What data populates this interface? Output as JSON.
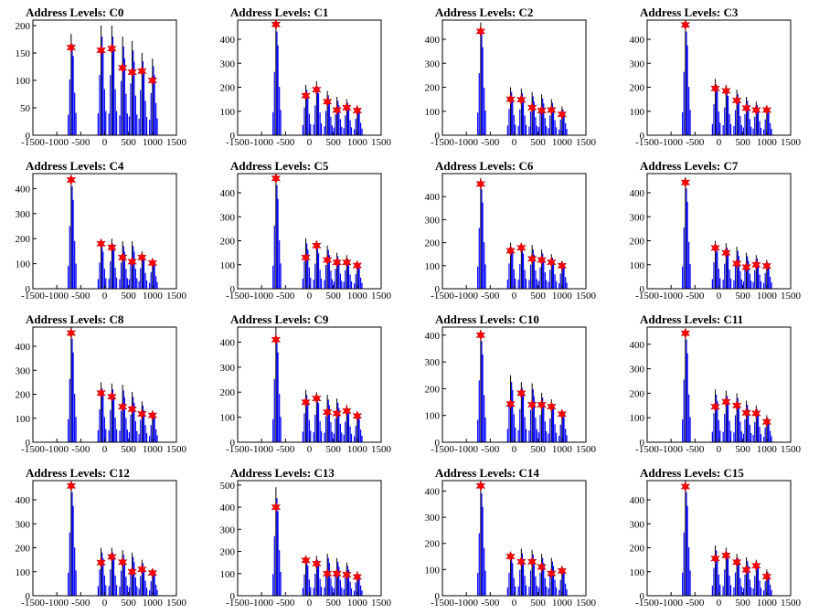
{
  "colors": {
    "histogram": "#0000ff",
    "peak_marker": "#ff0000",
    "axis": "#000000",
    "background": "#ffffff"
  },
  "axis": {
    "xlim": [
      -1500,
      1500
    ],
    "xticks": [
      -1500,
      -1000,
      -500,
      0,
      500,
      1000,
      1500
    ]
  },
  "chart_data": [
    {
      "type": "line",
      "title": "Address Levels: C0",
      "ylim": [
        0,
        210
      ],
      "yticks": [
        0,
        50,
        100,
        150,
        200
      ],
      "peaks": [
        {
          "x": -700,
          "y": 160,
          "top": 185
        },
        {
          "x": -75,
          "y": 155,
          "top": 200
        },
        {
          "x": 150,
          "y": 158,
          "top": 200
        },
        {
          "x": 375,
          "y": 123,
          "top": 180
        },
        {
          "x": 575,
          "y": 115,
          "top": 172
        },
        {
          "x": 780,
          "y": 117,
          "top": 150
        },
        {
          "x": 1000,
          "y": 100,
          "top": 140
        }
      ]
    },
    {
      "type": "line",
      "title": "Address Levels: C1",
      "ylim": [
        0,
        480
      ],
      "yticks": [
        0,
        100,
        200,
        300,
        400
      ],
      "peaks": [
        {
          "x": -700,
          "y": 462,
          "top": 480
        },
        {
          "x": -75,
          "y": 165,
          "top": 210
        },
        {
          "x": 150,
          "y": 190,
          "top": 225
        },
        {
          "x": 375,
          "y": 140,
          "top": 185
        },
        {
          "x": 575,
          "y": 105,
          "top": 160
        },
        {
          "x": 780,
          "y": 115,
          "top": 150
        },
        {
          "x": 1000,
          "y": 103,
          "top": 125
        }
      ]
    },
    {
      "type": "line",
      "title": "Address Levels: C2",
      "ylim": [
        0,
        480
      ],
      "yticks": [
        0,
        100,
        200,
        300,
        400
      ],
      "peaks": [
        {
          "x": -700,
          "y": 433,
          "top": 470
        },
        {
          "x": -75,
          "y": 150,
          "top": 200
        },
        {
          "x": 150,
          "y": 148,
          "top": 195
        },
        {
          "x": 375,
          "y": 115,
          "top": 180
        },
        {
          "x": 575,
          "y": 103,
          "top": 170
        },
        {
          "x": 780,
          "y": 105,
          "top": 150
        },
        {
          "x": 1000,
          "y": 87,
          "top": 120
        }
      ]
    },
    {
      "type": "line",
      "title": "Address Levels: C3",
      "ylim": [
        0,
        480
      ],
      "yticks": [
        0,
        100,
        200,
        300,
        400
      ],
      "peaks": [
        {
          "x": -700,
          "y": 460,
          "top": 480
        },
        {
          "x": -75,
          "y": 195,
          "top": 235
        },
        {
          "x": 150,
          "y": 185,
          "top": 210
        },
        {
          "x": 375,
          "y": 145,
          "top": 190
        },
        {
          "x": 575,
          "y": 113,
          "top": 160
        },
        {
          "x": 780,
          "y": 105,
          "top": 140
        },
        {
          "x": 1000,
          "y": 105,
          "top": 120
        }
      ]
    },
    {
      "type": "line",
      "title": "Address Levels: C4",
      "ylim": [
        0,
        460
      ],
      "yticks": [
        0,
        100,
        200,
        300,
        400
      ],
      "peaks": [
        {
          "x": -700,
          "y": 435,
          "top": 455
        },
        {
          "x": -75,
          "y": 180,
          "top": 190
        },
        {
          "x": 150,
          "y": 165,
          "top": 200
        },
        {
          "x": 375,
          "y": 125,
          "top": 190
        },
        {
          "x": 575,
          "y": 108,
          "top": 190
        },
        {
          "x": 780,
          "y": 125,
          "top": 150
        },
        {
          "x": 1000,
          "y": 103,
          "top": 120
        }
      ]
    },
    {
      "type": "line",
      "title": "Address Levels: C5",
      "ylim": [
        0,
        480
      ],
      "yticks": [
        0,
        100,
        200,
        300,
        400
      ],
      "peaks": [
        {
          "x": -700,
          "y": 460,
          "top": 480
        },
        {
          "x": -75,
          "y": 130,
          "top": 210
        },
        {
          "x": 150,
          "y": 180,
          "top": 190
        },
        {
          "x": 375,
          "y": 120,
          "top": 180
        },
        {
          "x": 575,
          "y": 110,
          "top": 150
        },
        {
          "x": 780,
          "y": 110,
          "top": 140
        },
        {
          "x": 1000,
          "y": 97,
          "top": 110
        }
      ]
    },
    {
      "type": "line",
      "title": "Address Levels: C6",
      "ylim": [
        0,
        500
      ],
      "yticks": [
        0,
        100,
        200,
        300,
        400
      ],
      "peaks": [
        {
          "x": -700,
          "y": 455,
          "top": 480
        },
        {
          "x": -75,
          "y": 165,
          "top": 200
        },
        {
          "x": 150,
          "y": 178,
          "top": 195
        },
        {
          "x": 375,
          "y": 130,
          "top": 190
        },
        {
          "x": 575,
          "y": 125,
          "top": 170
        },
        {
          "x": 780,
          "y": 115,
          "top": 150
        },
        {
          "x": 1000,
          "y": 100,
          "top": 120
        }
      ]
    },
    {
      "type": "line",
      "title": "Address Levels: C7",
      "ylim": [
        0,
        480
      ],
      "yticks": [
        0,
        100,
        200,
        300,
        400
      ],
      "peaks": [
        {
          "x": -700,
          "y": 443,
          "top": 465
        },
        {
          "x": -75,
          "y": 170,
          "top": 200
        },
        {
          "x": 150,
          "y": 150,
          "top": 190
        },
        {
          "x": 375,
          "y": 105,
          "top": 175
        },
        {
          "x": 575,
          "y": 90,
          "top": 150
        },
        {
          "x": 780,
          "y": 100,
          "top": 140
        },
        {
          "x": 1000,
          "y": 95,
          "top": 120
        }
      ]
    },
    {
      "type": "line",
      "title": "Address Levels: C8",
      "ylim": [
        0,
        480
      ],
      "yticks": [
        0,
        100,
        200,
        300,
        400
      ],
      "peaks": [
        {
          "x": -700,
          "y": 455,
          "top": 480
        },
        {
          "x": -75,
          "y": 205,
          "top": 250
        },
        {
          "x": 150,
          "y": 190,
          "top": 245
        },
        {
          "x": 375,
          "y": 148,
          "top": 240
        },
        {
          "x": 575,
          "y": 138,
          "top": 210
        },
        {
          "x": 780,
          "y": 118,
          "top": 170
        },
        {
          "x": 1000,
          "y": 112,
          "top": 130
        }
      ]
    },
    {
      "type": "line",
      "title": "Address Levels: C9",
      "ylim": [
        0,
        460
      ],
      "yticks": [
        0,
        100,
        200,
        300,
        400
      ],
      "peaks": [
        {
          "x": -700,
          "y": 410,
          "top": 460
        },
        {
          "x": -75,
          "y": 160,
          "top": 210
        },
        {
          "x": 150,
          "y": 175,
          "top": 200
        },
        {
          "x": 375,
          "y": 120,
          "top": 190
        },
        {
          "x": 575,
          "y": 115,
          "top": 175
        },
        {
          "x": 780,
          "y": 125,
          "top": 150
        },
        {
          "x": 1000,
          "y": 105,
          "top": 120
        }
      ]
    },
    {
      "type": "line",
      "title": "Address Levels: C10",
      "ylim": [
        0,
        430
      ],
      "yticks": [
        0,
        100,
        200,
        300,
        400
      ],
      "peaks": [
        {
          "x": -700,
          "y": 400,
          "top": 420
        },
        {
          "x": -75,
          "y": 143,
          "top": 250
        },
        {
          "x": 150,
          "y": 183,
          "top": 225
        },
        {
          "x": 375,
          "y": 140,
          "top": 220
        },
        {
          "x": 575,
          "y": 140,
          "top": 185
        },
        {
          "x": 780,
          "y": 133,
          "top": 160
        },
        {
          "x": 1000,
          "y": 105,
          "top": 120
        }
      ]
    },
    {
      "type": "line",
      "title": "Address Levels: C11",
      "ylim": [
        0,
        470
      ],
      "yticks": [
        0,
        100,
        200,
        300,
        400
      ],
      "peaks": [
        {
          "x": -700,
          "y": 445,
          "top": 465
        },
        {
          "x": -75,
          "y": 145,
          "top": 215
        },
        {
          "x": 150,
          "y": 165,
          "top": 210
        },
        {
          "x": 375,
          "y": 150,
          "top": 200
        },
        {
          "x": 575,
          "y": 120,
          "top": 170
        },
        {
          "x": 780,
          "y": 118,
          "top": 150
        },
        {
          "x": 1000,
          "y": 83,
          "top": 110
        }
      ]
    },
    {
      "type": "line",
      "title": "Address Levels: C12",
      "ylim": [
        0,
        480
      ],
      "yticks": [
        0,
        100,
        200,
        300,
        400
      ],
      "peaks": [
        {
          "x": -700,
          "y": 458,
          "top": 480
        },
        {
          "x": -75,
          "y": 138,
          "top": 200
        },
        {
          "x": 150,
          "y": 162,
          "top": 200
        },
        {
          "x": 375,
          "y": 140,
          "top": 190
        },
        {
          "x": 575,
          "y": 100,
          "top": 180
        },
        {
          "x": 780,
          "y": 110,
          "top": 150
        },
        {
          "x": 1000,
          "y": 95,
          "top": 110
        }
      ]
    },
    {
      "type": "line",
      "title": "Address Levels: C13",
      "ylim": [
        0,
        520
      ],
      "yticks": [
        0,
        100,
        200,
        300,
        400,
        500
      ],
      "peaks": [
        {
          "x": -700,
          "y": 400,
          "top": 490
        },
        {
          "x": -75,
          "y": 160,
          "top": 175
        },
        {
          "x": 150,
          "y": 145,
          "top": 180
        },
        {
          "x": 375,
          "y": 100,
          "top": 190
        },
        {
          "x": 575,
          "y": 100,
          "top": 170
        },
        {
          "x": 780,
          "y": 95,
          "top": 150
        },
        {
          "x": 1000,
          "y": 85,
          "top": 110
        }
      ]
    },
    {
      "type": "line",
      "title": "Address Levels: C14",
      "ylim": [
        0,
        440
      ],
      "yticks": [
        0,
        100,
        200,
        300,
        400
      ],
      "peaks": [
        {
          "x": -700,
          "y": 420,
          "top": 435
        },
        {
          "x": -75,
          "y": 150,
          "top": 160
        },
        {
          "x": 150,
          "y": 130,
          "top": 180
        },
        {
          "x": 375,
          "y": 130,
          "top": 175
        },
        {
          "x": 575,
          "y": 110,
          "top": 160
        },
        {
          "x": 780,
          "y": 85,
          "top": 145
        },
        {
          "x": 1000,
          "y": 95,
          "top": 110
        }
      ]
    },
    {
      "type": "line",
      "title": "Address Levels: C15",
      "ylim": [
        0,
        480
      ],
      "yticks": [
        0,
        100,
        200,
        300,
        400
      ],
      "peaks": [
        {
          "x": -700,
          "y": 455,
          "top": 480
        },
        {
          "x": -75,
          "y": 155,
          "top": 210
        },
        {
          "x": 150,
          "y": 168,
          "top": 200
        },
        {
          "x": 375,
          "y": 140,
          "top": 175
        },
        {
          "x": 575,
          "y": 108,
          "top": 160
        },
        {
          "x": 780,
          "y": 125,
          "top": 150
        },
        {
          "x": 1000,
          "y": 80,
          "top": 110
        }
      ]
    }
  ]
}
